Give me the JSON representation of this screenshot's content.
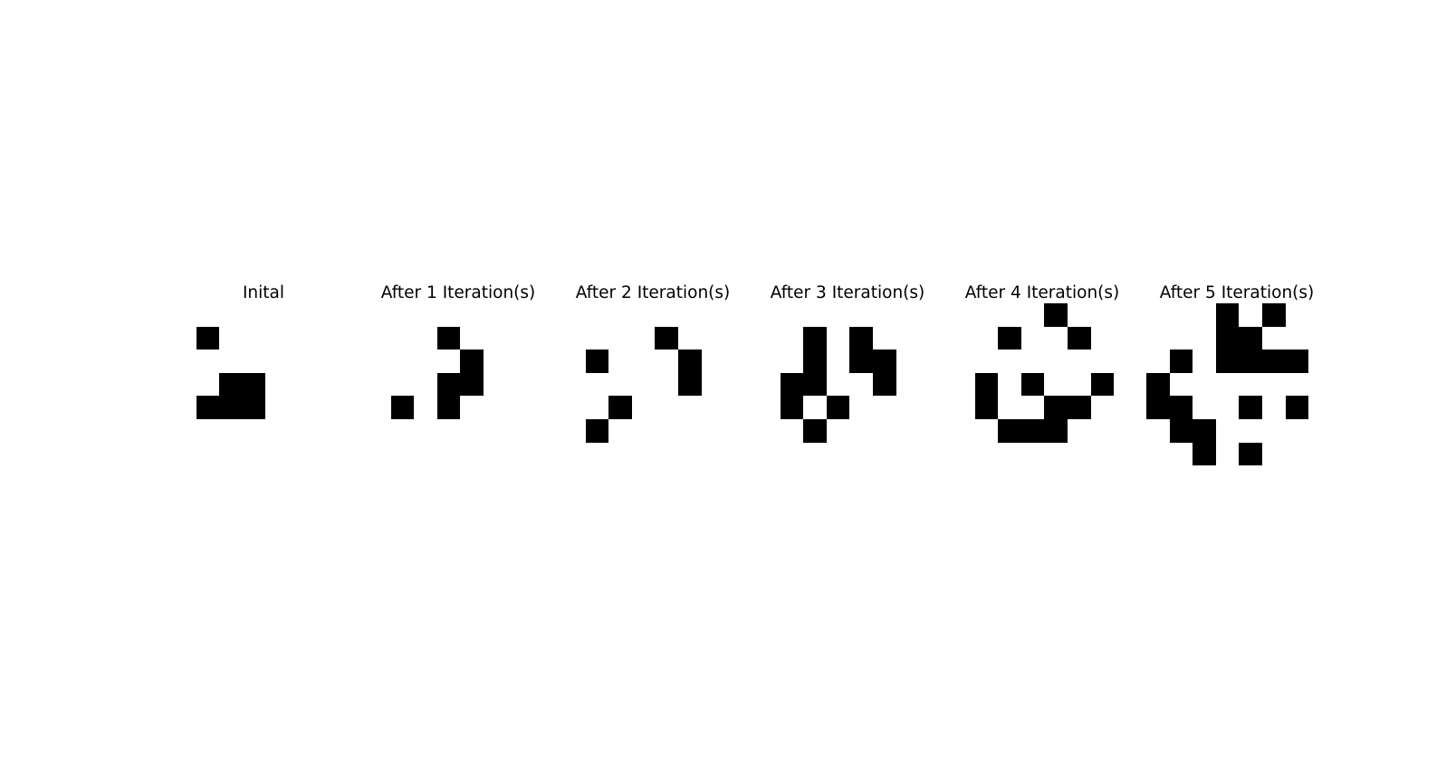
{
  "figure": {
    "cell_color": "#000000",
    "background_color": "#ffffff",
    "panels": [
      {
        "title": "Inital",
        "live_cells": [
          [
            1,
            1
          ],
          [
            3,
            2
          ],
          [
            3,
            3
          ],
          [
            4,
            1
          ],
          [
            4,
            2
          ],
          [
            4,
            3
          ]
        ]
      },
      {
        "title": "After 1 Iteration(s)",
        "live_cells": [
          [
            1,
            3
          ],
          [
            2,
            4
          ],
          [
            3,
            3
          ],
          [
            3,
            4
          ],
          [
            4,
            1
          ],
          [
            4,
            3
          ]
        ]
      },
      {
        "title": "After 2 Iteration(s)",
        "live_cells": [
          [
            1,
            4
          ],
          [
            2,
            1
          ],
          [
            2,
            5
          ],
          [
            3,
            5
          ],
          [
            4,
            2
          ],
          [
            5,
            1
          ]
        ]
      },
      {
        "title": "After 3 Iteration(s)",
        "live_cells": [
          [
            1,
            2
          ],
          [
            1,
            4
          ],
          [
            2,
            2
          ],
          [
            2,
            4
          ],
          [
            2,
            5
          ],
          [
            3,
            1
          ],
          [
            3,
            2
          ],
          [
            3,
            5
          ],
          [
            4,
            1
          ],
          [
            4,
            3
          ],
          [
            5,
            2
          ]
        ]
      },
      {
        "title": "After 4 Iteration(s)",
        "live_cells": [
          [
            0,
            4
          ],
          [
            1,
            2
          ],
          [
            1,
            5
          ],
          [
            3,
            1
          ],
          [
            3,
            3
          ],
          [
            3,
            6
          ],
          [
            4,
            1
          ],
          [
            4,
            4
          ],
          [
            4,
            5
          ],
          [
            5,
            2
          ],
          [
            5,
            3
          ],
          [
            5,
            4
          ]
        ]
      },
      {
        "title": "After 5 Iteration(s)",
        "live_cells": [
          [
            0,
            3
          ],
          [
            0,
            5
          ],
          [
            1,
            3
          ],
          [
            1,
            4
          ],
          [
            2,
            1
          ],
          [
            2,
            3
          ],
          [
            2,
            4
          ],
          [
            2,
            5
          ],
          [
            2,
            6
          ],
          [
            3,
            0
          ],
          [
            4,
            0
          ],
          [
            4,
            1
          ],
          [
            4,
            4
          ],
          [
            4,
            6
          ],
          [
            5,
            1
          ],
          [
            5,
            2
          ],
          [
            6,
            2
          ],
          [
            6,
            4
          ]
        ]
      }
    ]
  }
}
